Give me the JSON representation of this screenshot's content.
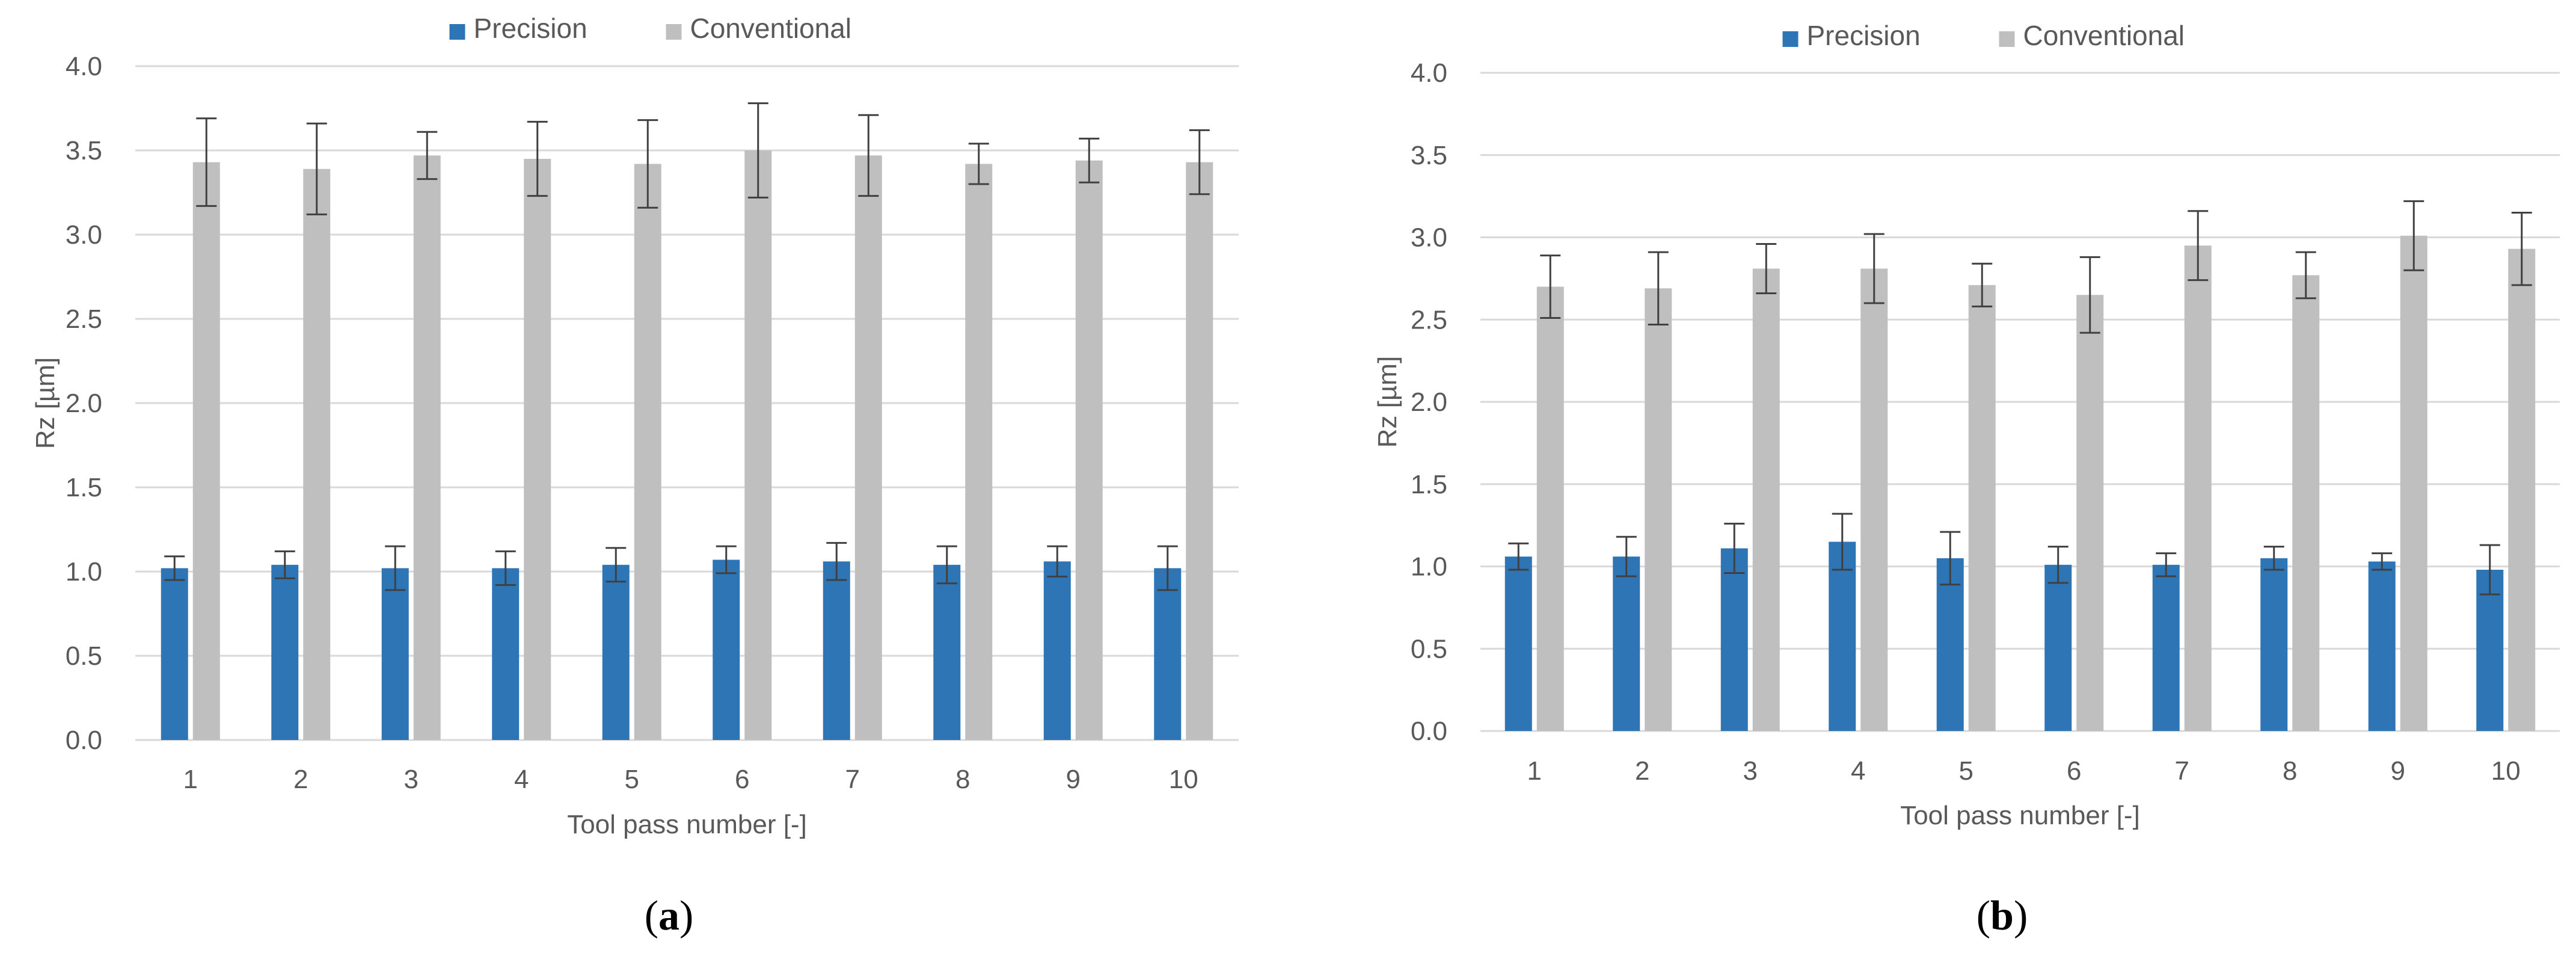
{
  "colors": {
    "precision": "#2E75B6",
    "conventional": "#BFBFBF",
    "grid": "#D9D9D9",
    "error_bar": "#404040"
  },
  "chart_data": [
    {
      "type": "bar",
      "panel_label": "a",
      "xlabel": "Tool pass number [-]",
      "ylabel": "Rz [µm]",
      "ylim": [
        0,
        4.0
      ],
      "yticks": [
        "0.0",
        "0.5",
        "1.0",
        "1.5",
        "2.0",
        "2.5",
        "3.0",
        "3.5",
        "4.0"
      ],
      "categories": [
        "1",
        "2",
        "3",
        "4",
        "5",
        "6",
        "7",
        "8",
        "9",
        "10"
      ],
      "grid": true,
      "legend_position": "top-center",
      "series": [
        {
          "name": "Precision",
          "color": "#2E75B6",
          "values": [
            1.02,
            1.04,
            1.02,
            1.02,
            1.04,
            1.07,
            1.06,
            1.04,
            1.06,
            1.02
          ],
          "errors": [
            0.07,
            0.08,
            0.13,
            0.1,
            0.1,
            0.08,
            0.11,
            0.11,
            0.09,
            0.13
          ]
        },
        {
          "name": "Conventional",
          "color": "#BFBFBF",
          "values": [
            3.43,
            3.39,
            3.47,
            3.45,
            3.42,
            3.5,
            3.47,
            3.42,
            3.44,
            3.43
          ],
          "errors": [
            0.26,
            0.27,
            0.14,
            0.22,
            0.26,
            0.28,
            0.24,
            0.12,
            0.13,
            0.19
          ]
        }
      ]
    },
    {
      "type": "bar",
      "panel_label": "b",
      "xlabel": "Tool pass number [-]",
      "ylabel": "Rz [µm]",
      "ylim": [
        0,
        4.0
      ],
      "yticks": [
        "0.0",
        "0.5",
        "1.0",
        "1.5",
        "2.0",
        "2.5",
        "3.0",
        "3.5",
        "4.0"
      ],
      "categories": [
        "1",
        "2",
        "3",
        "4",
        "5",
        "6",
        "7",
        "8",
        "9",
        "10"
      ],
      "grid": true,
      "legend_position": "top-center",
      "series": [
        {
          "name": "Precision",
          "color": "#2E75B6",
          "values": [
            1.06,
            1.06,
            1.11,
            1.15,
            1.05,
            1.01,
            1.01,
            1.05,
            1.03,
            0.98
          ],
          "errors": [
            0.08,
            0.12,
            0.15,
            0.17,
            0.16,
            0.11,
            0.07,
            0.07,
            0.05,
            0.15
          ]
        },
        {
          "name": "Conventional",
          "color": "#BFBFBF",
          "values": [
            2.7,
            2.69,
            2.81,
            2.81,
            2.71,
            2.65,
            2.95,
            2.77,
            3.01,
            2.93
          ],
          "errors": [
            0.19,
            0.22,
            0.15,
            0.21,
            0.13,
            0.23,
            0.21,
            0.14,
            0.21,
            0.22
          ]
        }
      ]
    }
  ]
}
